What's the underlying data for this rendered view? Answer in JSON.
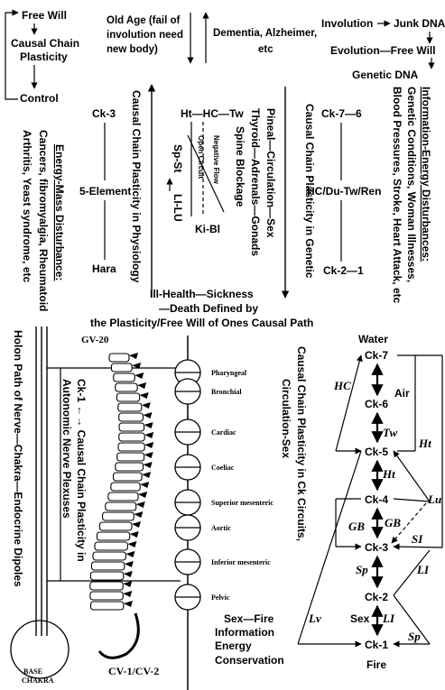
{
  "top": {
    "free_will": "Free Will",
    "causal_chain": "Causal Chain",
    "plasticity": "Plasticity",
    "control": "Control",
    "old_age_1": "Old Age (fail of",
    "old_age_2": "involution need",
    "old_age_3": "new body)",
    "dementia_1": "Dementia, Alzheimer,",
    "dementia_2": "etc",
    "involution": "Involution",
    "junk_dna": "Junk DNA",
    "evolution": "Evolution—Free Will",
    "genetic_dna": "Genetic DNA"
  },
  "middle": {
    "energy_mass_title": "Energy-Mass Disturbance:",
    "energy_mass_1": "Cancers, fibromyalgia, Rheumatoid",
    "energy_mass_2": "Arthritis, Yeast syndrome, etc",
    "ck3": "Ck-3",
    "five_element": "5-Element",
    "hara": "Hara",
    "physiology": "Causal Chain Plasticity in Physiology",
    "ht_hc_tw": "Ht—HC—Tw",
    "negative_flow": "Negative Flow",
    "open_circuit": "Open Circuit",
    "spine_blockage": "Spine Blockage",
    "sp_st": "Sp-St",
    "li_lu": "LI-LU",
    "ki_bl": "Ki-Bl",
    "pineal": "Pineal—Circulation—Sex",
    "thyroid": "Thyroid—Adrenals—Gonads",
    "genetic": "Causal Chain Plasticity in Genetic",
    "ck7_6": "Ck-7—6",
    "hc_du": "HC/Du-Tw/Ren",
    "ck2_1": "Ck-2—1",
    "info_title": "Information-Energy Disturbances:",
    "info_1": "Genetic Conditions, Woman Illnesses,",
    "info_2": "Blood Pressures, Stroke, Heart Attack, etc",
    "ill_1": "Ill-Health—Sickness",
    "ill_2": "—Death Defined by",
    "ill_3": "the Plasticity/Free Will of Ones Causal Path"
  },
  "spine": {
    "holon": "Holon Path of Nerve—Chakra—Endocrine Dipoles",
    "gv20": "GV-20",
    "ck1_label": "Ck-1 ←→ Causal Chain Plasticity in",
    "ck1_label_2": "Autonomic Nerve Plexuses",
    "plexuses": [
      "Pharyngeal",
      "Bronchial",
      "Cardiac",
      "Coeliac",
      "Superior mesenteric",
      "Aortic",
      "Inferior mesenteric",
      "Pelvic"
    ],
    "base_1": "BASE",
    "base_2": "CHAKRA",
    "cv": "CV-1/CV-2"
  },
  "circuit": {
    "title_1": "Causal Chain Plasticity in Ck Circuits,",
    "title_2": "Circulation-Sex",
    "water": "Water",
    "air": "Air",
    "fire": "Fire",
    "ck7": "Ck-7",
    "ck6": "Ck-6",
    "ck5": "Ck-5",
    "ck4": "Ck-4",
    "ck3": "Ck-3",
    "ck2": "Ck-2",
    "ck1": "Ck-1",
    "hc": "HC",
    "tw": "Tw",
    "ht_inner": "Ht",
    "ht_outer": "Ht",
    "lu": "Lu",
    "gb_left": "GB",
    "gb_right": "GB",
    "si": "SI",
    "sp_left": "Sp",
    "li_right": "LI",
    "sex": "Sex",
    "li_lower": "LI",
    "lv": "Lv",
    "sp_lower": "Sp",
    "sex_fire": "Sex—Fire",
    "information": "Information",
    "energy": "Energy",
    "conservation": "Conservation"
  }
}
